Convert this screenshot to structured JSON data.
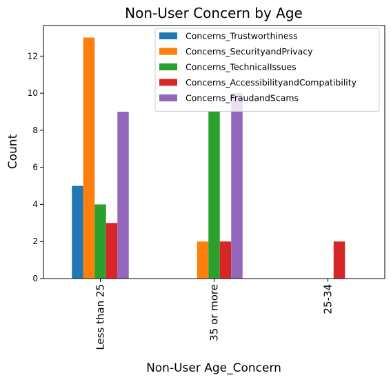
{
  "chart_data": {
    "type": "bar",
    "title": "Non-User Concern by Age",
    "xlabel": "Non-User Age_Concern",
    "ylabel": "Count",
    "categories": [
      "Less than 25",
      "35 or more",
      "25-34"
    ],
    "series": [
      {
        "name": "Concerns_Trustworthiness",
        "values": [
          5,
          0,
          0
        ],
        "color": "#1f77b4"
      },
      {
        "name": "Concerns_SecurityandPrivacy",
        "values": [
          13,
          2,
          0
        ],
        "color": "#ff7f0e"
      },
      {
        "name": "Concerns_TechnicalIssues",
        "values": [
          4,
          9,
          0
        ],
        "color": "#2ca02c"
      },
      {
        "name": "Concerns_AccessibilityandCompatibility",
        "values": [
          3,
          2,
          2
        ],
        "color": "#d62728"
      },
      {
        "name": "Concerns_FraudandScams",
        "values": [
          9,
          10,
          0
        ],
        "color": "#9467bd"
      }
    ],
    "ylim": [
      0,
      13.65
    ],
    "yticks": [
      0,
      2,
      4,
      6,
      8,
      10,
      12
    ],
    "grid": false,
    "legend_position": "top-right"
  }
}
